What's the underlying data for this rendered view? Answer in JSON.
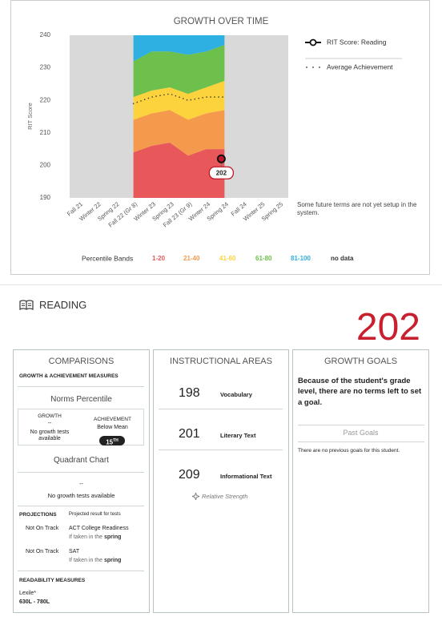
{
  "chart_data": {
    "type": "line",
    "title": "GROWTH OVER TIME",
    "y_label": "RIT Score",
    "categories": [
      "Fall 21",
      "Winter 22",
      "Spring 22",
      "Fall 22 (Gr 8)",
      "Winter 23",
      "Spring 23",
      "Fall 23 (Gr 9)",
      "Winter 24",
      "Spring 24",
      "Fall 24",
      "Winter 25",
      "Spring 25"
    ],
    "ylim": [
      190,
      240
    ],
    "yticks": [
      190,
      200,
      210,
      220,
      230,
      240
    ],
    "grid": false,
    "series": [
      {
        "name": "RIT Score: Reading",
        "color": "#c0172b",
        "values": [
          null,
          null,
          null,
          null,
          null,
          null,
          null,
          null,
          202,
          null,
          null,
          null
        ]
      },
      {
        "name": "Average Achievement",
        "color": "#333333",
        "values": [
          null,
          null,
          null,
          219,
          221,
          222,
          220,
          221,
          221,
          null,
          null,
          null
        ]
      }
    ],
    "band_legend_title": "Percentile Bands",
    "bands": [
      {
        "name": "1-20",
        "color": "#e8575a",
        "values": [
          null,
          null,
          null,
          14,
          16,
          17,
          13,
          15,
          15,
          null,
          null,
          null
        ]
      },
      {
        "name": "21-40",
        "color": "#f5994c",
        "values": [
          null,
          null,
          null,
          10,
          10,
          10,
          11,
          11,
          12,
          null,
          null,
          null
        ]
      },
      {
        "name": "41-60",
        "color": "#fcd23d",
        "values": [
          null,
          null,
          null,
          7,
          7,
          7,
          8,
          8,
          9,
          null,
          null,
          null
        ]
      },
      {
        "name": "61-80",
        "color": "#6dc04b",
        "values": [
          null,
          null,
          null,
          11,
          12,
          11,
          12,
          11,
          11,
          null,
          null,
          null
        ]
      },
      {
        "name": "81-100",
        "color": "#2eb0e2",
        "values": [
          null,
          null,
          null,
          8,
          5,
          5,
          6,
          5,
          3,
          null,
          null,
          null
        ]
      }
    ],
    "no_data_label": "no data",
    "no_data_color": "#d9d9d9",
    "note": "Some future terms are not yet setup in the system."
  },
  "reading": {
    "title": "READING",
    "score": "202",
    "comparisons": {
      "title": "COMPARISONS",
      "subtitle": "GROWTH & ACHIEVEMENT MEASURES",
      "norms_title": "Norms Percentile",
      "growth_label": "GROWTH",
      "growth_value": "--",
      "growth_note": "No growth tests available",
      "achievement_label": "ACHIEVEMENT",
      "achievement_value": "Below Mean",
      "percentile": "15",
      "percentile_suffix": "TH",
      "quadrant_title": "Quadrant Chart",
      "quadrant_value": "--",
      "quadrant_note": "No growth tests available",
      "projections_title": "PROJECTIONS",
      "projections_note": "Projected result for tests",
      "projections": [
        {
          "status": "Not On Track",
          "test": "ACT College Readiness",
          "condition": "If taken in the",
          "season": "spring"
        },
        {
          "status": "Not On Track",
          "test": "SAT",
          "condition": "If taken in the",
          "season": "spring"
        }
      ],
      "readability_title": "READABILITY MEASURES",
      "lexile_label": "Lexile*",
      "lexile_range": "630L - 780L"
    },
    "instructional": {
      "title": "INSTRUCTIONAL AREAS",
      "areas": [
        {
          "score": "198",
          "name": "Vocabulary"
        },
        {
          "score": "201",
          "name": "Literary Text"
        },
        {
          "score": "209",
          "name": "Informational Text"
        }
      ],
      "strength": "Relative Strength"
    },
    "goals": {
      "title": "GROWTH GOALS",
      "message": "Because of the student's grade level, there are no terms left to set a goal.",
      "past_title": "Past Goals",
      "past_message": "There are no previous goals for this student."
    }
  }
}
